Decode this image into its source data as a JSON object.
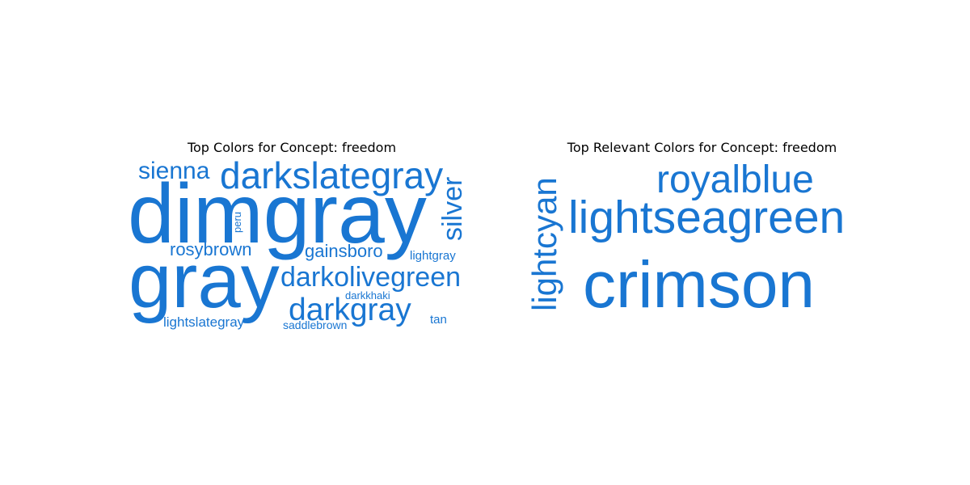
{
  "chart_data": [
    {
      "type": "wordcloud",
      "title": "Top Colors for Concept: freedom",
      "word_color": "#1976d2",
      "words": [
        {
          "text": "dimgray",
          "weight": 100
        },
        {
          "text": "gray",
          "weight": 88
        },
        {
          "text": "darkslategray",
          "weight": 46
        },
        {
          "text": "sienna",
          "weight": 34
        },
        {
          "text": "silver",
          "weight": 38
        },
        {
          "text": "darkolivegreen",
          "weight": 36
        },
        {
          "text": "darkgray",
          "weight": 40
        },
        {
          "text": "rosybrown",
          "weight": 26
        },
        {
          "text": "gainsboro",
          "weight": 25
        },
        {
          "text": "lightgray",
          "weight": 16
        },
        {
          "text": "lightslategray",
          "weight": 18
        },
        {
          "text": "saddlebrown",
          "weight": 14
        },
        {
          "text": "tan",
          "weight": 15
        },
        {
          "text": "darkkhaki",
          "weight": 13
        },
        {
          "text": "peru",
          "weight": 12
        }
      ]
    },
    {
      "type": "wordcloud",
      "title": "Top Relevant Colors for Concept: freedom",
      "word_color": "#1976d2",
      "words": [
        {
          "text": "crimson",
          "weight": 100
        },
        {
          "text": "lightseagreen",
          "weight": 71
        },
        {
          "text": "royalblue",
          "weight": 59
        },
        {
          "text": "lightcyan",
          "weight": 52
        }
      ]
    }
  ]
}
